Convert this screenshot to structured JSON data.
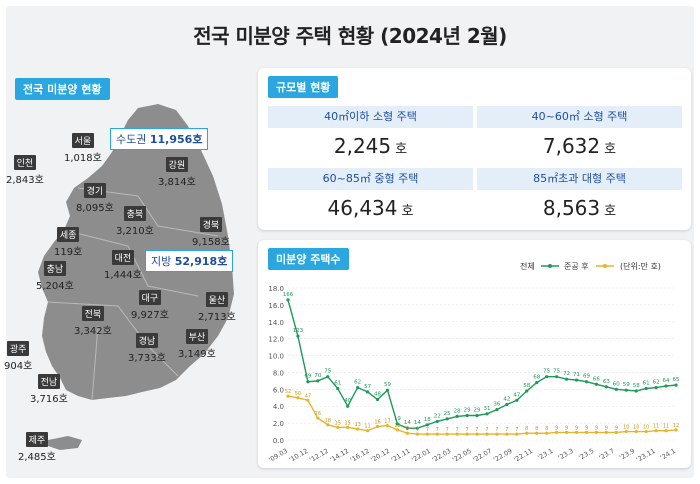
{
  "page_title": "전국 미분양 주택 현황 (2024년 2월)",
  "map_section": {
    "label": "전국 미분양 현황",
    "capital_callout": {
      "name": "수도권",
      "value": "11,956호"
    },
    "province_callout": {
      "name": "지방",
      "value": "52,918호"
    },
    "regions": [
      {
        "key": "seoul",
        "name": "서울",
        "value": "1,018호"
      },
      {
        "key": "incheon",
        "name": "인천",
        "value": "2,843호"
      },
      {
        "key": "gangwon",
        "name": "강원",
        "value": "3,814호"
      },
      {
        "key": "gyeonggi",
        "name": "경기",
        "value": "8,095호"
      },
      {
        "key": "chungbuk",
        "name": "충북",
        "value": "3,210호"
      },
      {
        "key": "gyeongbuk",
        "name": "경북",
        "value": "9,158호"
      },
      {
        "key": "sejong",
        "name": "세종",
        "value": "119호"
      },
      {
        "key": "daejeon",
        "name": "대전",
        "value": "1,444호"
      },
      {
        "key": "chungnam",
        "name": "충남",
        "value": "5,204호"
      },
      {
        "key": "daegu",
        "name": "대구",
        "value": "9,927호"
      },
      {
        "key": "ulsan",
        "name": "울산",
        "value": "2,713호"
      },
      {
        "key": "jeonbuk",
        "name": "전북",
        "value": "3,342호"
      },
      {
        "key": "gyeongnam",
        "name": "경남",
        "value": "3,733호"
      },
      {
        "key": "busan",
        "name": "부산",
        "value": "3,149호"
      },
      {
        "key": "gwangju",
        "name": "광주",
        "value": "904호"
      },
      {
        "key": "jeonnam",
        "name": "전남",
        "value": "3,716호"
      },
      {
        "key": "jeju",
        "name": "제주",
        "value": "2,485호"
      }
    ]
  },
  "size_section": {
    "label": "규모별 현황",
    "cells": [
      {
        "head": "40㎡이하 소형 주택",
        "value": "2,245",
        "unit": "호"
      },
      {
        "head": "40~60㎡ 소형 주택",
        "value": "7,632",
        "unit": "호"
      },
      {
        "head": "60~85㎡ 중형 주택",
        "value": "46,434",
        "unit": "호"
      },
      {
        "head": "85㎡초과 대형 주택",
        "value": "8,563",
        "unit": "호"
      }
    ]
  },
  "chart_section": {
    "label": "미분양 주택수",
    "legend_total": "전체",
    "legend_completed": "준공 후",
    "unit_note": "(단위:만 호)"
  },
  "colors": {
    "total": "#1e9a5b",
    "completed": "#e8b428",
    "accent": "#2aa6e0",
    "map": "#8d8d8d"
  },
  "chart_data": {
    "type": "line",
    "x_ticks": [
      "'09.03",
      "'10.12",
      "'12.12",
      "'14.12",
      "'16.12",
      "'20.12",
      "'21.11",
      "'22.01",
      "'22.03",
      "'22.05",
      "'22.07",
      "'22.09",
      "'22.11",
      "'23.1",
      "'23.3",
      "'23.5",
      "'23.7",
      "'23.9",
      "'23.11",
      "'24.1"
    ],
    "ylim": [
      0,
      18
    ],
    "y_ticks": [
      "0.0",
      "2.0",
      "4.0",
      "6.0",
      "8.0",
      "10.0",
      "12.0",
      "14.0",
      "16.0",
      "18.0"
    ],
    "grid": true,
    "series": [
      {
        "name": "전체",
        "values": [
          16.6,
          12.3,
          6.9,
          7.0,
          7.5,
          6.1,
          4.0,
          6.2,
          5.7,
          4.8,
          5.9,
          1.9,
          1.4,
          1.4,
          1.8,
          2.2,
          2.5,
          2.8,
          2.9,
          2.9,
          3.1,
          3.6,
          4.2,
          4.7,
          5.8,
          6.8,
          7.5,
          7.5,
          7.2,
          7.1,
          6.9,
          6.6,
          6.3,
          6.0,
          5.9,
          5.8,
          6.1,
          6.2,
          6.4,
          6.5
        ]
      },
      {
        "name": "준공 후",
        "values": [
          5.2,
          5.0,
          4.7,
          2.6,
          1.8,
          1.5,
          1.5,
          1.3,
          1.1,
          1.6,
          1.7,
          1.2,
          0.8,
          0.7,
          0.7,
          0.7,
          0.7,
          0.7,
          0.7,
          0.7,
          0.7,
          0.7,
          0.7,
          0.7,
          0.8,
          0.8,
          0.8,
          0.9,
          0.9,
          0.9,
          0.9,
          0.9,
          0.9,
          0.9,
          1.0,
          1.0,
          1.0,
          1.1,
          1.1,
          1.2
        ]
      }
    ],
    "labels_total": [
      "166",
      "123",
      "69",
      "70",
      "75",
      "61",
      "40",
      "62",
      "57",
      "48",
      "59",
      "19",
      "14",
      "14",
      "18",
      "22",
      "25",
      "28",
      "29",
      "29",
      "31",
      "36",
      "42",
      "47",
      "58",
      "68",
      "75",
      "75",
      "72",
      "71",
      "69",
      "66",
      "63",
      "60",
      "59",
      "58",
      "61",
      "62",
      "64",
      "65"
    ],
    "labels_completed": [
      "52",
      "50",
      "47",
      "26",
      "18",
      "15",
      "15",
      "13",
      "11",
      "16",
      "17",
      "12",
      "8",
      "7",
      "7",
      "7",
      "7",
      "7",
      "7",
      "7",
      "7",
      "7",
      "7",
      "7",
      "8",
      "8",
      "8",
      "9",
      "9",
      "9",
      "9",
      "9",
      "9",
      "9",
      "10",
      "10",
      "10",
      "11",
      "11",
      "12"
    ]
  }
}
